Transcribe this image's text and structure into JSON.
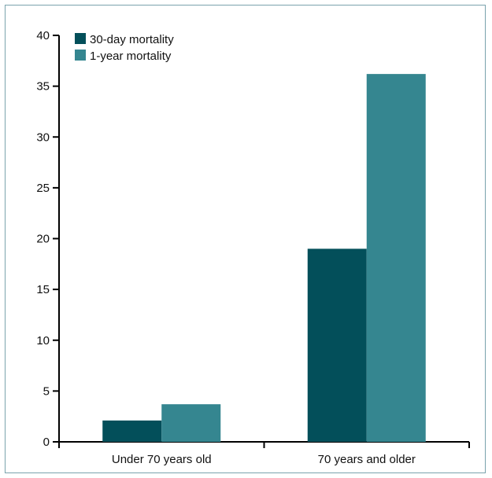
{
  "chart_data": {
    "type": "bar",
    "categories": [
      "Under 70 years old",
      "70 years and older"
    ],
    "series": [
      {
        "name": "30-day mortality",
        "values": [
          2.1,
          19.0
        ],
        "color": "#034f5a"
      },
      {
        "name": "1-year mortality",
        "values": [
          3.7,
          36.2
        ],
        "color": "#358690"
      }
    ],
    "ylim": [
      0,
      40
    ],
    "yticks": [
      0,
      5,
      10,
      15,
      20,
      25,
      30,
      35,
      40
    ],
    "legend_position": "top-left",
    "grid": false
  }
}
